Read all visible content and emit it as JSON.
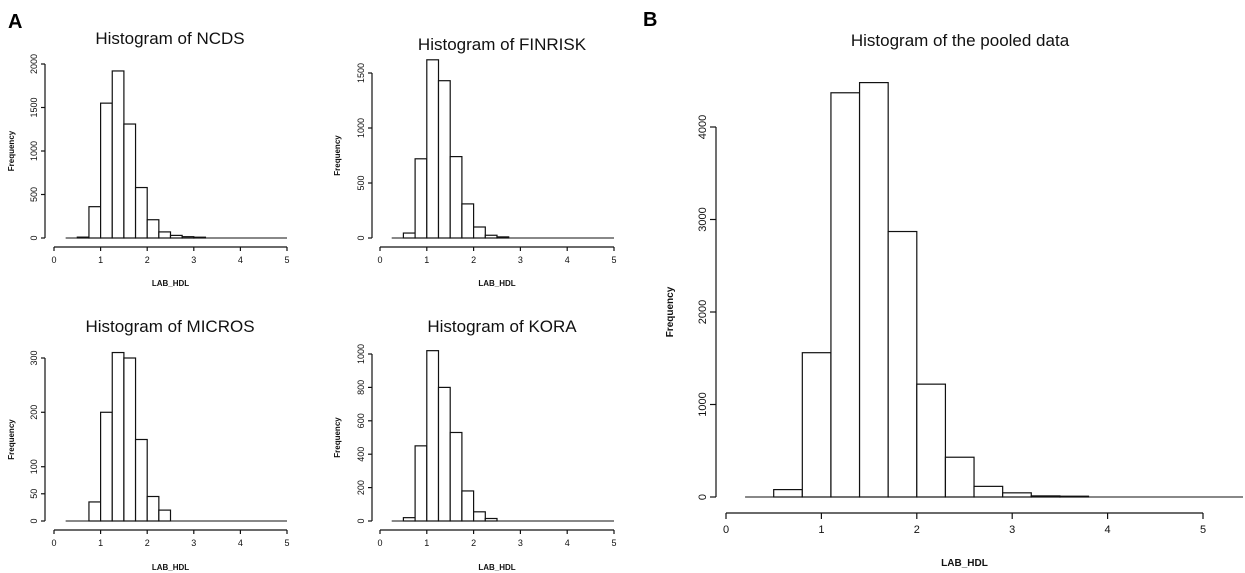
{
  "panels": {
    "a_label": "A",
    "b_label": "B"
  },
  "chart_data": [
    {
      "type": "bar",
      "title": "Histogram of NCDS",
      "xlabel": "LAB_HDL",
      "ylabel": "Frequency",
      "xlim": [
        0,
        5
      ],
      "ylim": [
        0,
        2000
      ],
      "xticks": [
        0,
        1,
        2,
        3,
        4,
        5
      ],
      "yticks": [
        0,
        500,
        1000,
        1500,
        2000
      ],
      "bin_edges": [
        0.25,
        0.5,
        0.75,
        1.0,
        1.25,
        1.5,
        1.75,
        2.0,
        2.25,
        2.5,
        2.75,
        3.0,
        3.25,
        3.5,
        3.75,
        4.0,
        4.25,
        4.5,
        4.75,
        5.0
      ],
      "values": [
        0,
        10,
        360,
        1550,
        1920,
        1310,
        580,
        210,
        70,
        30,
        15,
        8,
        0,
        0,
        0,
        0,
        0,
        0,
        0
      ]
    },
    {
      "type": "bar",
      "title": "Histogram of FINRISK",
      "xlabel": "LAB_HDL",
      "ylabel": "Frequency",
      "xlim": [
        0,
        5
      ],
      "ylim": [
        0,
        1600
      ],
      "xticks": [
        0,
        1,
        2,
        3,
        4,
        5
      ],
      "yticks": [
        0,
        500,
        1000,
        1500
      ],
      "bin_edges": [
        0.25,
        0.5,
        0.75,
        1.0,
        1.25,
        1.5,
        1.75,
        2.0,
        2.25,
        2.5,
        2.75,
        3.0,
        3.25,
        3.5,
        3.75,
        4.0,
        4.25,
        4.5,
        4.75,
        5.0
      ],
      "values": [
        0,
        45,
        720,
        1620,
        1430,
        740,
        310,
        100,
        25,
        10,
        0,
        0,
        0,
        0,
        0,
        0,
        0,
        0,
        0
      ]
    },
    {
      "type": "bar",
      "title": "Histogram of MICROS",
      "xlabel": "LAB_HDL",
      "ylabel": "Frequency",
      "xlim": [
        0,
        5
      ],
      "ylim": [
        0,
        320
      ],
      "xticks": [
        0,
        1,
        2,
        3,
        4,
        5
      ],
      "yticks": [
        0,
        50,
        100,
        200,
        300
      ],
      "y_segments": [
        [
          0,
          0
        ],
        [
          50,
          0.167
        ],
        [
          100,
          0.333
        ],
        [
          200,
          0.667
        ],
        [
          300,
          1.0
        ],
        [
          320,
          1.067
        ]
      ],
      "bin_edges": [
        0.25,
        0.5,
        0.75,
        1.0,
        1.25,
        1.5,
        1.75,
        2.0,
        2.25,
        2.5,
        2.75,
        3.0,
        3.25,
        3.5,
        3.75,
        4.0,
        4.25,
        4.5,
        4.75,
        5.0
      ],
      "values": [
        0,
        0,
        35,
        200,
        310,
        300,
        150,
        45,
        20,
        0,
        0,
        0,
        0,
        0,
        0,
        0,
        0,
        0,
        0
      ]
    },
    {
      "type": "bar",
      "title": "Histogram of KORA",
      "xlabel": "LAB_HDL",
      "ylabel": "Frequency",
      "xlim": [
        0,
        5
      ],
      "ylim": [
        0,
        1050
      ],
      "xticks": [
        0,
        1,
        2,
        3,
        4,
        5
      ],
      "yticks": [
        0,
        200,
        400,
        600,
        800,
        1000
      ],
      "bin_edges": [
        0.25,
        0.5,
        0.75,
        1.0,
        1.25,
        1.5,
        1.75,
        2.0,
        2.25,
        2.5,
        2.75,
        3.0,
        3.25,
        3.5,
        3.75,
        4.0,
        4.25,
        4.5,
        4.75,
        5.0
      ],
      "values": [
        0,
        20,
        450,
        1020,
        800,
        530,
        180,
        55,
        15,
        0,
        0,
        0,
        0,
        0,
        0,
        0,
        0,
        0,
        0
      ]
    },
    {
      "type": "bar",
      "title": "Histogram of the pooled data",
      "xlabel": "LAB_HDL",
      "ylabel": "Frequency",
      "xlim": [
        0,
        5.5
      ],
      "ylim": [
        0,
        4500
      ],
      "xticks": [
        0,
        1,
        2,
        3,
        4,
        5
      ],
      "yticks": [
        0,
        1000,
        2000,
        3000,
        4000
      ],
      "bin_edges": [
        0.2,
        0.5,
        0.8,
        1.1,
        1.4,
        1.7,
        2.0,
        2.3,
        2.6,
        2.9,
        3.2,
        3.5,
        3.8,
        4.1,
        4.4,
        4.7,
        5.0,
        5.3,
        5.6
      ],
      "values": [
        0,
        80,
        1560,
        4370,
        4480,
        2870,
        1220,
        430,
        115,
        45,
        12,
        5,
        0,
        0,
        0,
        0,
        0,
        0
      ]
    }
  ]
}
